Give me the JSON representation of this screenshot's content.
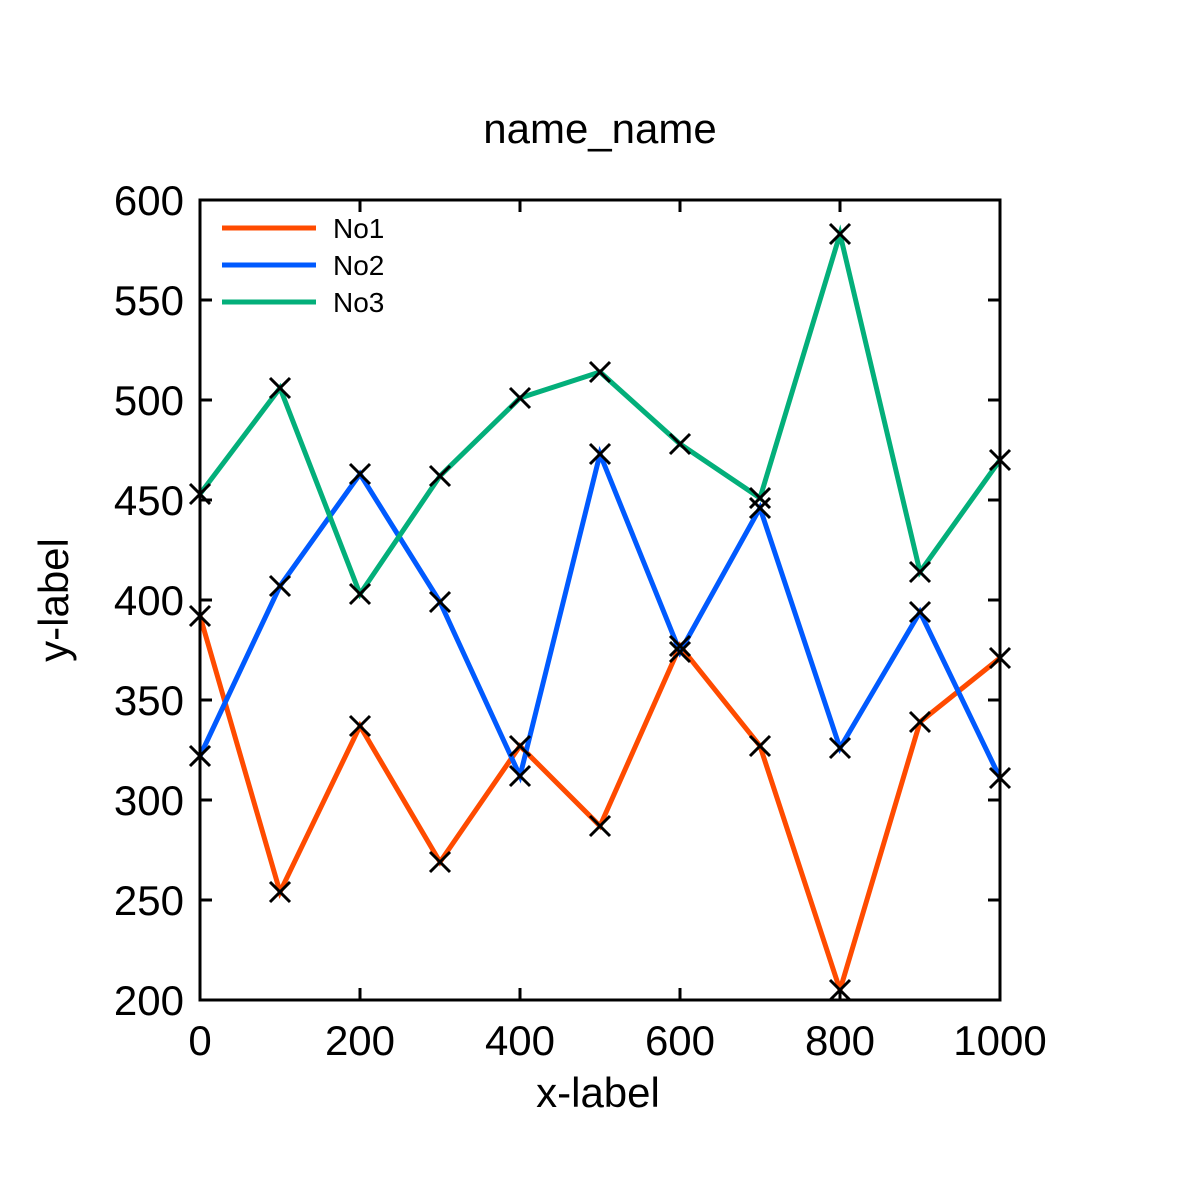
{
  "chart_data": {
    "type": "line",
    "title": "name_name",
    "xlabel": "x-label",
    "ylabel": "y-label",
    "xlim": [
      0,
      1000
    ],
    "ylim": [
      200,
      600
    ],
    "xticks": [
      0,
      200,
      400,
      600,
      800,
      1000
    ],
    "yticks": [
      200,
      250,
      300,
      350,
      400,
      450,
      500,
      550,
      600
    ],
    "grid": false,
    "legend_position": "top-left",
    "marker": "x",
    "marker_color": "#000000",
    "x": [
      0,
      100,
      200,
      300,
      400,
      500,
      600,
      700,
      800,
      900,
      1000
    ],
    "series": [
      {
        "name": "No1",
        "color": "#ff4b00",
        "values": [
          392,
          254,
          337,
          269,
          327,
          287,
          377,
          327,
          205,
          339,
          371
        ]
      },
      {
        "name": "No2",
        "color": "#005aff",
        "values": [
          322,
          407,
          463,
          399,
          312,
          473,
          374,
          446,
          326,
          394,
          311
        ]
      },
      {
        "name": "No3",
        "color": "#03af7a",
        "values": [
          453,
          506,
          403,
          462,
          501,
          514,
          478,
          451,
          583,
          414,
          470
        ]
      }
    ]
  }
}
